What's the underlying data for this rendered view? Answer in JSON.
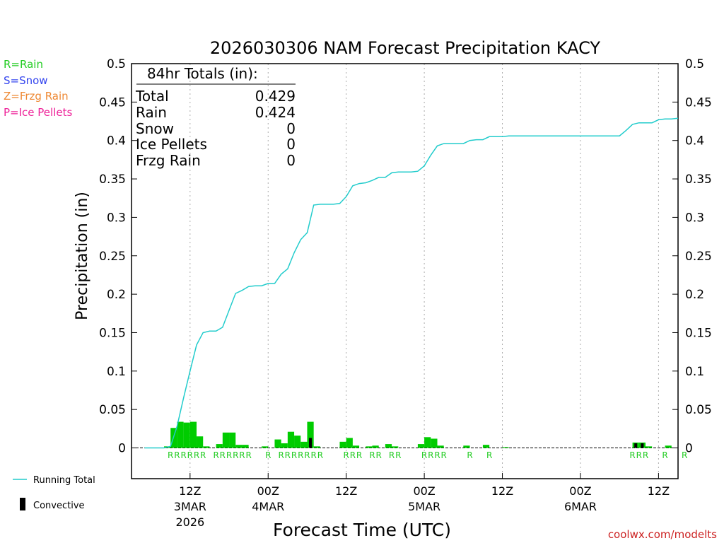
{
  "chart_data": {
    "type": "bar+line",
    "title": "2026030306 NAM Forecast Precipitation KACY",
    "ylabel": "Precipitation (in)",
    "xlabel": "Forecast Time (UTC)",
    "ylim": [
      -0.04,
      0.5
    ],
    "yticks": [
      0,
      0.05,
      0.1,
      0.15,
      0.2,
      0.25,
      0.3,
      0.35,
      0.4,
      0.45,
      0.5
    ],
    "ytick_labels": [
      "0",
      "0.05",
      "0.1",
      "0.15",
      "0.2",
      "0.25",
      "0.3",
      "0.35",
      "0.4",
      "0.45",
      "0.5"
    ],
    "xlim_hours": [
      -3,
      81
    ],
    "x_time_labels": [
      {
        "hour": 6,
        "lines": [
          "12Z",
          "3MAR",
          "2026"
        ]
      },
      {
        "hour": 18,
        "lines": [
          "00Z",
          "4MAR"
        ]
      },
      {
        "hour": 30,
        "lines": [
          "12Z"
        ]
      },
      {
        "hour": 42,
        "lines": [
          "00Z",
          "5MAR"
        ]
      },
      {
        "hour": 54,
        "lines": [
          "12Z"
        ]
      },
      {
        "hour": 66,
        "lines": [
          "00Z",
          "6MAR"
        ]
      },
      {
        "hour": 78,
        "lines": [
          "12Z"
        ]
      }
    ],
    "legend_types": [
      {
        "label": "R=Rain",
        "color": "#22cc22"
      },
      {
        "label": "S=Snow",
        "color": "#3344ee"
      },
      {
        "label": "Z=Frzg Rain",
        "color": "#ee8833"
      },
      {
        "label": "P=Ice Pellets",
        "color": "#ee2299"
      }
    ],
    "legend_series": [
      {
        "label": "Running Total",
        "kind": "line",
        "color": "#22cccc"
      },
      {
        "label": "Convective",
        "kind": "bar",
        "color": "#000000"
      }
    ],
    "totals_box": {
      "header": "84hr Totals (in):",
      "rows": [
        {
          "label": "Total",
          "value": "0.429"
        },
        {
          "label": "Rain",
          "value": "0.424"
        },
        {
          "label": "Snow",
          "value": "0"
        },
        {
          "label": "Ice Pellets",
          "value": "0"
        },
        {
          "label": "Frzg Rain",
          "value": "0"
        }
      ]
    },
    "hourly_precip": {
      "hours": [
        1,
        2,
        3,
        4,
        5,
        6,
        7,
        8,
        9,
        10,
        11,
        12,
        13,
        14,
        15,
        16,
        17,
        18,
        19,
        20,
        21,
        22,
        23,
        24,
        25,
        26,
        27,
        28,
        29,
        30,
        31,
        32,
        33,
        34,
        35,
        36,
        37,
        38,
        39,
        40,
        41,
        42,
        43,
        44,
        45,
        46,
        47,
        48,
        49,
        50,
        51,
        52,
        53,
        54,
        55,
        56,
        57,
        58,
        59,
        60,
        61,
        62,
        63,
        64,
        65,
        66,
        67,
        68,
        69,
        70,
        71,
        72,
        73,
        74,
        75,
        76,
        77,
        78,
        79,
        80,
        81
      ],
      "values": [
        0,
        0,
        0.002,
        0.026,
        0.034,
        0.033,
        0.034,
        0.015,
        0.002,
        0,
        0.005,
        0.02,
        0.02,
        0.004,
        0.004,
        0,
        0,
        0.002,
        0,
        0.011,
        0.006,
        0.021,
        0.016,
        0.008,
        0.034,
        0.002,
        0,
        0,
        0,
        0.008,
        0.013,
        0.003,
        0,
        0.002,
        0.003,
        0,
        0.005,
        0.002,
        0,
        0,
        0,
        0.005,
        0.014,
        0.012,
        0.003,
        0,
        0,
        0,
        0.003,
        0,
        0,
        0.004,
        0,
        0,
        0.001,
        0,
        0,
        0,
        0,
        0,
        0,
        0,
        0,
        0,
        0,
        0,
        0,
        0,
        0,
        0,
        0,
        0,
        0,
        0,
        0.007,
        0.007,
        0.002,
        0,
        0,
        0.003,
        0
      ],
      "convective": [
        0,
        0,
        0,
        0,
        0,
        0,
        0,
        0,
        0,
        0,
        0,
        0,
        0,
        0,
        0,
        0,
        0,
        0,
        0,
        0,
        0,
        0,
        0,
        0,
        0.013,
        0,
        0,
        0,
        0,
        0,
        0,
        0,
        0,
        0,
        0,
        0,
        0,
        0,
        0,
        0,
        0,
        0,
        0,
        0,
        0,
        0,
        0,
        0,
        0,
        0,
        0,
        0,
        0,
        0,
        0,
        0,
        0,
        0,
        0,
        0,
        0,
        0,
        0,
        0,
        0,
        0,
        0,
        0,
        0,
        0,
        0,
        0,
        0,
        0,
        0.006,
        0.006,
        0,
        0,
        0,
        0,
        0
      ]
    },
    "running_total": {
      "hours": [
        -1,
        0,
        1,
        2,
        3,
        4,
        5,
        6,
        7,
        8,
        9,
        10,
        11,
        12,
        13,
        14,
        15,
        16,
        17,
        18,
        19,
        20,
        21,
        22,
        23,
        24,
        25,
        26,
        27,
        28,
        29,
        30,
        31,
        32,
        33,
        34,
        35,
        36,
        37,
        38,
        39,
        40,
        41,
        42,
        43,
        44,
        45,
        46,
        47,
        48,
        49,
        50,
        51,
        52,
        53,
        54,
        55,
        56,
        57,
        58,
        59,
        60,
        61,
        62,
        63,
        64,
        65,
        66,
        67,
        68,
        69,
        70,
        71,
        72,
        73,
        74,
        75,
        76,
        77,
        78,
        79,
        80,
        81
      ],
      "values": [
        0,
        0,
        0,
        0,
        0.002,
        0.028,
        0.065,
        0.1,
        0.134,
        0.15,
        0.152,
        0.152,
        0.157,
        0.179,
        0.201,
        0.205,
        0.21,
        0.211,
        0.211,
        0.214,
        0.214,
        0.226,
        0.233,
        0.254,
        0.271,
        0.28,
        0.316,
        0.317,
        0.317,
        0.317,
        0.318,
        0.327,
        0.341,
        0.344,
        0.345,
        0.348,
        0.352,
        0.352,
        0.358,
        0.359,
        0.359,
        0.359,
        0.36,
        0.367,
        0.381,
        0.393,
        0.396,
        0.396,
        0.396,
        0.396,
        0.4,
        0.401,
        0.401,
        0.405,
        0.405,
        0.405,
        0.406,
        0.406,
        0.406,
        0.406,
        0.406,
        0.406,
        0.406,
        0.406,
        0.406,
        0.406,
        0.406,
        0.406,
        0.406,
        0.406,
        0.406,
        0.406,
        0.406,
        0.406,
        0.413,
        0.421,
        0.423,
        0.423,
        0.423,
        0.427,
        0.428,
        0.428,
        0.429
      ],
      "color": "#22cccc"
    },
    "type_label_color": "#22cc22",
    "type_labels": [
      {
        "hour": 3,
        "text": "R"
      },
      {
        "hour": 4,
        "text": "R"
      },
      {
        "hour": 5,
        "text": "R"
      },
      {
        "hour": 6,
        "text": "R"
      },
      {
        "hour": 7,
        "text": "R"
      },
      {
        "hour": 8,
        "text": "R"
      },
      {
        "hour": 10,
        "text": "R"
      },
      {
        "hour": 11,
        "text": "R"
      },
      {
        "hour": 12,
        "text": "R"
      },
      {
        "hour": 13,
        "text": "R"
      },
      {
        "hour": 14,
        "text": "R"
      },
      {
        "hour": 15,
        "text": "R"
      },
      {
        "hour": 18,
        "text": "R"
      },
      {
        "hour": 20,
        "text": "R"
      },
      {
        "hour": 21,
        "text": "R"
      },
      {
        "hour": 22,
        "text": "R"
      },
      {
        "hour": 23,
        "text": "R"
      },
      {
        "hour": 24,
        "text": "R"
      },
      {
        "hour": 25,
        "text": "R"
      },
      {
        "hour": 26,
        "text": "R"
      },
      {
        "hour": 30,
        "text": "R"
      },
      {
        "hour": 31,
        "text": "R"
      },
      {
        "hour": 32,
        "text": "R"
      },
      {
        "hour": 34,
        "text": "R"
      },
      {
        "hour": 35,
        "text": "R"
      },
      {
        "hour": 37,
        "text": "R"
      },
      {
        "hour": 38,
        "text": "R"
      },
      {
        "hour": 42,
        "text": "R"
      },
      {
        "hour": 43,
        "text": "R"
      },
      {
        "hour": 44,
        "text": "R"
      },
      {
        "hour": 45,
        "text": "R"
      },
      {
        "hour": 49,
        "text": "R"
      },
      {
        "hour": 52,
        "text": "R"
      },
      {
        "hour": 74,
        "text": "R"
      },
      {
        "hour": 75,
        "text": "R"
      },
      {
        "hour": 76,
        "text": "R"
      },
      {
        "hour": 79,
        "text": "R"
      },
      {
        "hour": 82,
        "text": "R"
      }
    ],
    "credit": "coolwx.com/modelts"
  }
}
